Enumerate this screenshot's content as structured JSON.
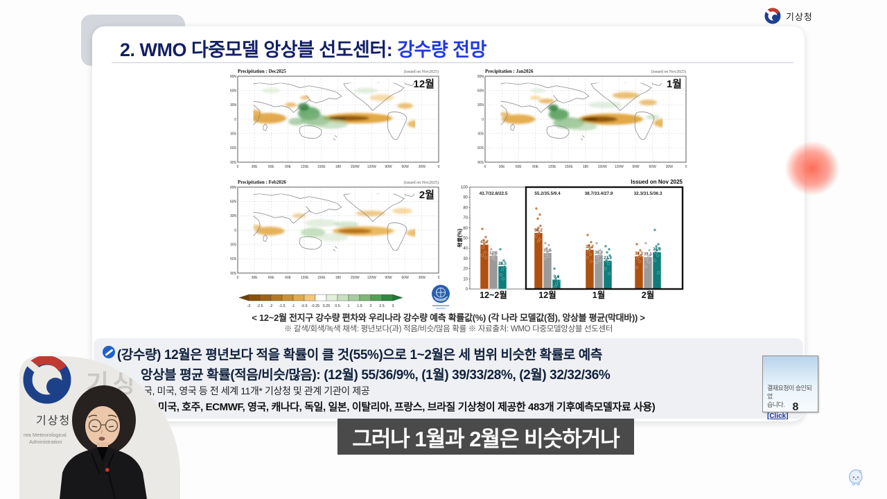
{
  "header": {
    "logo_text": "기상청"
  },
  "slide": {
    "title_main": "2. WMO 다중모델 앙상블 선도센터: ",
    "title_accent": "강수량 전망",
    "page_number": "8"
  },
  "maps": [
    {
      "title": "Precipitation : Dec2025",
      "issued": "(issued on Nov2025)",
      "month_label": "12월"
    },
    {
      "title": "Precipitation : Jan2026",
      "issued": "(issued on Nov2025)",
      "month_label": "1월"
    },
    {
      "title": "Precipitation : Feb2026",
      "issued": "(issued on Nov2025)",
      "month_label": "2월"
    }
  ],
  "map_axes": {
    "lat": [
      "90N",
      "60N",
      "30N",
      "0",
      "30S",
      "60S",
      "90S"
    ],
    "lon": [
      "0",
      "30E",
      "60E",
      "90E",
      "120E",
      "150E",
      "180",
      "150W",
      "120W",
      "90W",
      "60W",
      "30W",
      "0"
    ]
  },
  "colorbar": {
    "ticks": [
      "-3",
      "-2.5",
      "-2",
      "-1.5",
      "-1",
      "-0.5",
      "-0.25",
      "0.25",
      "0.5",
      "1",
      "1.5",
      "2",
      "2.5",
      "3"
    ],
    "segment_colors": [
      "#8a5208",
      "#9e6410",
      "#b37a1c",
      "#ca922f",
      "#e0ab48",
      "#f2c878",
      "#ffffff",
      "#e4efdc",
      "#c8dfc2",
      "#a6cd9d",
      "#7fb876",
      "#54a156",
      "#2d8a3e"
    ],
    "left_arrow_color": "#713f04",
    "right_arrow_color": "#1b7a32"
  },
  "chart_data": {
    "type": "bar",
    "issued_label": "Issued on Nov 2025",
    "ylabel": "확률(%)",
    "ylim": [
      0,
      100
    ],
    "yticks": [
      0,
      10,
      20,
      30,
      40,
      50,
      60,
      70,
      80,
      90,
      100
    ],
    "categories": [
      "12~2월",
      "12월",
      "1월",
      "2월"
    ],
    "group_annotations": [
      "43.7/32.8/22.5",
      "55.2/35.5/9.4",
      "38.7/33.4/27.9",
      "32.3/31.5/36.3"
    ],
    "highlight_box_categories": [
      "12월",
      "1월",
      "2월"
    ],
    "series": [
      {
        "name": "평년보다 적음(갈색)",
        "color": "#b05010",
        "label_color": "#8a3e08",
        "values": [
          43.7,
          55.2,
          38.7,
          32.3
        ],
        "points": [
          [
            59,
            51,
            48,
            46,
            44,
            41,
            36,
            33,
            31
          ],
          [
            79,
            73,
            69,
            62,
            60,
            58,
            55,
            52,
            49,
            47
          ],
          [
            53,
            46,
            43,
            41,
            39,
            37,
            34,
            31,
            27
          ],
          [
            44,
            38,
            35,
            33,
            32,
            30,
            27,
            21
          ]
        ]
      },
      {
        "name": "평년과 비슷(회색)",
        "color": "#9a9a9a",
        "label_color": "#6e6e6e",
        "values": [
          32.8,
          35.5,
          33.4,
          31.5
        ],
        "points": [
          [
            39,
            36,
            34,
            33,
            32,
            31,
            29
          ],
          [
            45,
            43,
            40,
            38,
            36,
            34,
            32,
            30
          ],
          [
            45,
            38,
            36,
            34,
            33,
            31,
            28,
            26
          ],
          [
            45,
            38,
            35,
            33,
            31,
            29,
            26,
            22
          ]
        ]
      },
      {
        "name": "평년보다 많음(녹색)",
        "color": "#0e7d7c",
        "label_color": "#0a5f5e",
        "values": [
          22.5,
          9.4,
          27.9,
          36.3
        ],
        "points": [
          [
            39,
            28,
            25,
            22,
            19,
            14,
            10
          ],
          [
            20,
            12,
            10,
            8,
            5,
            2
          ],
          [
            42,
            39,
            36,
            33,
            30,
            28,
            25,
            20,
            15
          ],
          [
            58,
            44,
            42,
            40,
            38,
            36,
            33,
            28,
            16
          ]
        ]
      }
    ]
  },
  "caption": {
    "line1": "< 12~2월 전지구 강수량 편차와 우리나라 강수량 예측 확률값(%) (각 나라 모델값(점), 앙상블 평균(막대바)) >",
    "line2": "※ 갈색/회색/녹색 채색: 평년보다(과) 적음/비슷/많음 확률  ※ 자료출처: WMO 다중모델앙상블 선도센터"
  },
  "notes": {
    "line1": "(강수량) 12월은 평년보다 적을 확률이 클 것(55%)으로 1~2월은 세 범위 비슷한 확률로 예측",
    "line2": "앙상블 평균 확률(적음/비슷/많음): (12월) 55/36/9%, (1월) 39/33/28%, (2월) 32/32/36%",
    "line3": "국, 미국, 영국 등 전 세계 11개* 기상청 및 관계 기관이 제공",
    "line4": "국, 미국, 호주, ECMWF, 영국, 캐나다, 독일, 일본, 이탈리아, 프랑스, 브라질 기상청이 제공한 483개 기후예측모델자료 사용)"
  },
  "subtitle_bar": {
    "text": "그러나 1월과 2월은 비슷하거나"
  },
  "popup": {
    "message_line1": "결재요청이 승인되었",
    "message_line2": "습니다.",
    "link_label": "[Click]"
  },
  "video_overlay": {
    "sign_text": "기상",
    "logo_text": "기상청",
    "sub_text1": "rea Meteorological",
    "sub_text2": "Administration"
  }
}
